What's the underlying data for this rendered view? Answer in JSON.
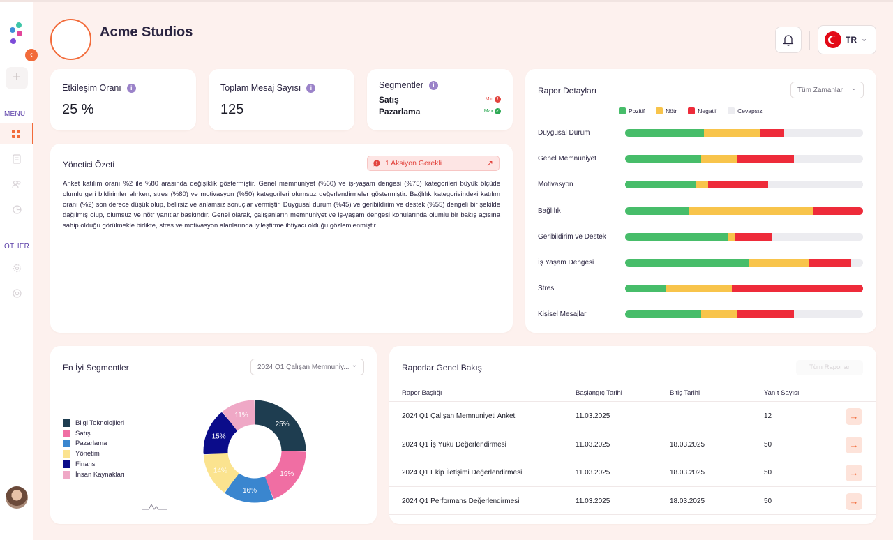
{
  "brand": {
    "name": "Acme Studios"
  },
  "sidebar": {
    "menu_label": "MENU",
    "other_label": "OTHER",
    "collapse_glyph": "‹",
    "plus_glyph": "+"
  },
  "header": {
    "lang_code": "TR",
    "lang_chevron": "⌄"
  },
  "stats": {
    "engagement": {
      "title": "Etkileşim Oranı",
      "value": "25 %"
    },
    "messages": {
      "title": "Toplam Mesaj Sayısı",
      "value": "125"
    },
    "segments": {
      "title": "Segmentler",
      "min_name": "Satış",
      "min_label": "Min",
      "max_name": "Pazarlama",
      "max_label": "Max"
    }
  },
  "summary": {
    "title": "Yönetici Özeti",
    "action_label": "1 Aksiyon Gerekli",
    "action_arrow": "↗",
    "text": "Anket katılım oranı %2 ile %80 arasında değişiklik göstermiştir. Genel memnuniyet (%60) ve iş-yaşam dengesi (%75) kategorileri büyük ölçüde olumlu geri bildirimler alırken, stres (%80) ve motivasyon (%50) kategorileri olumsuz değerlendirmeler göstermiştir. Bağlılık kategorisindeki katılım oranı (%2) son derece düşük olup, belirsiz ve anlamsız sonuçlar vermiştir. Duygusal durum (%45) ve geribildirim ve destek (%55) dengeli bir şekilde dağılmış olup, olumsuz ve nötr yanıtlar baskındır. Genel olarak, çalışanların memnuniyet ve iş-yaşam dengesi konularında olumlu bir bakış açısına sahip olduğu görülmekle birlikte, stres ve motivasyon alanlarında iyileştirme ihtiyacı olduğu gözlemlenmiştir."
  },
  "report_details": {
    "title": "Rapor Detayları",
    "filter": "Tüm Zamanlar",
    "legend": [
      "Pozitif",
      "Nötr",
      "Negatif",
      "Cevapsız"
    ],
    "colors": {
      "positive": "#47bd6a",
      "neutral": "#f8c44b",
      "negative": "#ee2b3a",
      "empty": "#ececf0"
    }
  },
  "chart_data": [
    {
      "type": "bar",
      "orientation": "horizontal",
      "stacked": true,
      "title": "Rapor Detayları",
      "categories": [
        "Duygusal Durum",
        "Genel Memnuniyet",
        "Motivasyon",
        "Bağlılık",
        "Geribildirim ve Destek",
        "İş Yaşam Dengesi",
        "Stres",
        "Kişisel Mesajlar"
      ],
      "series": [
        {
          "name": "Pozitif",
          "values": [
            33,
            32,
            30,
            27,
            43,
            52,
            17,
            32
          ]
        },
        {
          "name": "Nötr",
          "values": [
            24,
            15,
            5,
            52,
            3,
            25,
            28,
            15
          ]
        },
        {
          "name": "Negatif",
          "values": [
            10,
            24,
            25,
            21,
            16,
            18,
            55,
            24
          ]
        },
        {
          "name": "Cevapsız",
          "values": [
            33,
            29,
            40,
            0,
            38,
            5,
            0,
            29
          ]
        }
      ],
      "xlim": [
        0,
        100
      ]
    },
    {
      "type": "pie",
      "donut": true,
      "title": "En İyi Segmentler",
      "categories": [
        "Bilgi Teknolojileri",
        "Satış",
        "Pazarlama",
        "Yönetim",
        "Finans",
        "İnsan Kaynakları"
      ],
      "values": [
        25,
        19,
        16,
        14,
        15,
        11
      ],
      "colors": [
        "#1e3d50",
        "#f06ea3",
        "#3a86cf",
        "#fbe38f",
        "#0b0c8a",
        "#efa8c6"
      ],
      "legend_position": "left"
    }
  ],
  "top_segments": {
    "title": "En İyi Segmentler",
    "filter": "2024 Q1 Çalışan Memnuniy..."
  },
  "reports": {
    "title": "Raporlar Genel Bakış",
    "all_button": "Tüm Raporlar",
    "headers": [
      "Rapor Başlığı",
      "Başlangıç Tarihi",
      "Bitiş Tarihi",
      "Yanıt Sayısı"
    ],
    "rows": [
      {
        "title": "2024 Q1 Çalışan Memnuniyeti Anketi",
        "start": "11.03.2025",
        "end": "",
        "count": "12"
      },
      {
        "title": "2024 Q1 İş Yükü Değerlendirmesi",
        "start": "11.03.2025",
        "end": "18.03.2025",
        "count": "50"
      },
      {
        "title": "2024 Q1 Ekip İletişimi Değerlendirmesi",
        "start": "11.03.2025",
        "end": "18.03.2025",
        "count": "50"
      },
      {
        "title": "2024 Q1 Performans Değerlendirmesi",
        "start": "11.03.2025",
        "end": "18.03.2025",
        "count": "50"
      }
    ],
    "row_arrow": "→"
  }
}
